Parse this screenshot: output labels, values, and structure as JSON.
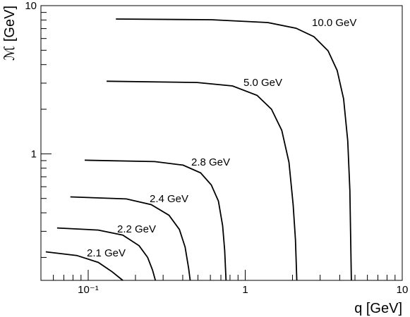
{
  "chart_data": {
    "type": "line",
    "x_label": "q [GeV]",
    "y_label": "ℳ [GeV]",
    "log_x": true,
    "log_y": true,
    "grid": false,
    "color": "#000000",
    "xlim": [
      0.05,
      10
    ],
    "ylim": [
      0.14,
      10
    ],
    "xticks": [
      {
        "value": 0.1,
        "label": "10⁻¹"
      },
      1,
      10
    ],
    "yticks": [
      1,
      10
    ],
    "xminor": [
      0.06,
      0.07,
      0.08,
      0.09,
      0.2,
      0.3,
      0.4,
      0.5,
      0.6,
      0.7,
      0.8,
      0.9,
      2,
      3,
      4,
      5,
      6,
      7,
      8,
      9
    ],
    "yminor": [
      0.2,
      0.3,
      0.4,
      0.5,
      0.6,
      0.7,
      0.8,
      0.9,
      2,
      3,
      4,
      5,
      6,
      7,
      8,
      9
    ],
    "series": [
      {
        "name": "10.0 GeV",
        "x": [
          0.15,
          0.608,
          1.39,
          2.11,
          2.74,
          3.37,
          3.85,
          4.23,
          4.5,
          4.64,
          4.74
        ],
        "values": [
          8.12,
          8.03,
          7.69,
          7.04,
          6.17,
          4.96,
          3.65,
          2.35,
          1.22,
          0.565,
          0.14
        ]
      },
      {
        "name": "5.0 GeV",
        "x": [
          0.131,
          0.494,
          0.83,
          1.19,
          1.47,
          1.71,
          1.9,
          2.02,
          2.09,
          2.13
        ],
        "values": [
          3.09,
          3.03,
          2.87,
          2.48,
          2.0,
          1.44,
          0.877,
          0.454,
          0.262,
          0.14
        ]
      },
      {
        "name": "2.8 GeV",
        "x": [
          0.095,
          0.265,
          0.402,
          0.52,
          0.608,
          0.675,
          0.718,
          0.74,
          0.755
        ],
        "values": [
          0.906,
          0.886,
          0.839,
          0.744,
          0.617,
          0.48,
          0.327,
          0.223,
          0.14
        ]
      },
      {
        "name": "2.4 GeV",
        "x": [
          0.077,
          0.175,
          0.252,
          0.327,
          0.381,
          0.414,
          0.436,
          0.446
        ],
        "values": [
          0.512,
          0.496,
          0.454,
          0.385,
          0.309,
          0.235,
          0.169,
          0.14
        ]
      },
      {
        "name": "2.2 GeV",
        "x": [
          0.0634,
          0.116,
          0.166,
          0.211,
          0.239,
          0.257,
          0.268
        ],
        "values": [
          0.316,
          0.306,
          0.283,
          0.24,
          0.2,
          0.164,
          0.14
        ]
      },
      {
        "name": "2.1 GeV",
        "x": [
          0.0537,
          0.0847,
          0.116,
          0.142,
          0.166
        ],
        "values": [
          0.218,
          0.206,
          0.185,
          0.16,
          0.14
        ]
      }
    ]
  }
}
